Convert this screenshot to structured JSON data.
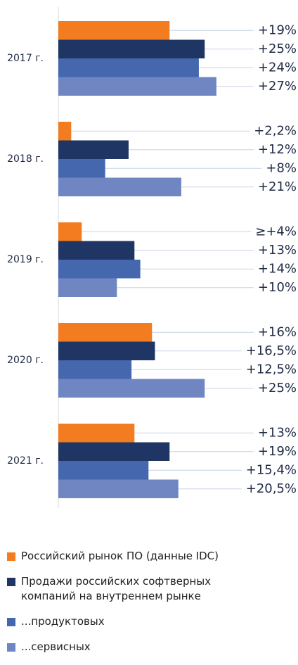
{
  "chart_data": {
    "type": "bar",
    "categories": [
      "2017 г.",
      "2018 г.",
      "2019 г.",
      "2020 г.",
      "2021 г."
    ],
    "series": [
      {
        "name": "Российский рынок ПО (данные IDC)",
        "color": "#f47c20",
        "values": [
          19,
          2.2,
          4,
          16,
          13
        ],
        "value_labels": [
          "+19%",
          "+2,2%",
          "≥+4%",
          "+16%",
          "+13%"
        ]
      },
      {
        "name": "Продажи российских софтверных компаний на внутреннем рынке",
        "color": "#1f3564",
        "values": [
          25,
          12,
          13,
          16.5,
          19
        ],
        "value_labels": [
          "+25%",
          "+12%",
          "+13%",
          "+16,5%",
          "+19%"
        ]
      },
      {
        "name": "...продуктовых",
        "color": "#4467ae",
        "values": [
          24,
          8,
          14,
          12.5,
          15.4
        ],
        "value_labels": [
          "+24%",
          "+8%",
          "+14%",
          "+12,5%",
          "+15,4%"
        ]
      },
      {
        "name": "...сервисных",
        "color": "#6f86c3",
        "values": [
          27,
          21,
          10,
          25,
          20.5
        ],
        "value_labels": [
          "+27%",
          "+21%",
          "+10%",
          "+25%",
          "+20,5%"
        ]
      }
    ]
  }
}
